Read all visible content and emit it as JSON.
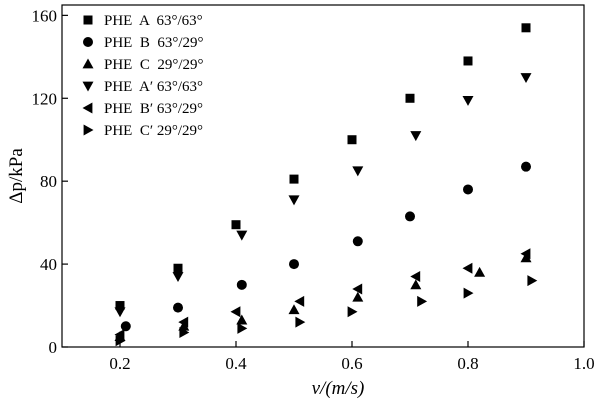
{
  "chart_data": {
    "type": "scatter",
    "title": "",
    "xlabel": "v/(m/s)",
    "ylabel": "Δp/kPa",
    "xlim": [
      0.1,
      1.0
    ],
    "ylim": [
      0,
      165
    ],
    "x_ticks": [
      "0.2",
      "0.4",
      "0.6",
      "0.8",
      "1.0"
    ],
    "y_ticks": [
      "0",
      "40",
      "80",
      "120",
      "160"
    ],
    "x_tick_values": [
      0.2,
      0.4,
      0.6,
      0.8,
      1.0
    ],
    "y_tick_values": [
      0,
      40,
      80,
      120,
      160
    ],
    "grid": false,
    "legend_position": "top-left",
    "series": [
      {
        "name": "PHE  A  63°/63°",
        "marker": "square",
        "x": [
          0.2,
          0.3,
          0.4,
          0.5,
          0.6,
          0.7,
          0.8,
          0.9
        ],
        "y": [
          20,
          38,
          59,
          81,
          100,
          120,
          138,
          154
        ]
      },
      {
        "name": "PHE  B  63°/29°",
        "marker": "circle",
        "x": [
          0.21,
          0.3,
          0.41,
          0.5,
          0.61,
          0.7,
          0.8,
          0.9
        ],
        "y": [
          10,
          19,
          30,
          40,
          51,
          63,
          76,
          87
        ]
      },
      {
        "name": "PHE  C  29°/29°",
        "marker": "triangle-up",
        "x": [
          0.2,
          0.31,
          0.41,
          0.5,
          0.61,
          0.71,
          0.82,
          0.9
        ],
        "y": [
          5,
          10,
          13,
          18,
          24,
          30,
          36,
          43
        ]
      },
      {
        "name": "PHE  A′ 63°/63°",
        "marker": "triangle-down",
        "x": [
          0.2,
          0.3,
          0.41,
          0.5,
          0.61,
          0.71,
          0.8,
          0.9
        ],
        "y": [
          17,
          34,
          54,
          71,
          85,
          102,
          119,
          130
        ]
      },
      {
        "name": "PHE  B′ 63°/29°",
        "marker": "triangle-left",
        "x": [
          0.2,
          0.31,
          0.4,
          0.51,
          0.61,
          0.71,
          0.8,
          0.9
        ],
        "y": [
          6,
          12,
          17,
          22,
          28,
          34,
          38,
          45
        ]
      },
      {
        "name": "PHE  C′ 29°/29°",
        "marker": "triangle-right",
        "x": [
          0.2,
          0.31,
          0.41,
          0.51,
          0.6,
          0.72,
          0.8,
          0.91
        ],
        "y": [
          3,
          7,
          9,
          12,
          17,
          22,
          26,
          32
        ]
      }
    ]
  }
}
